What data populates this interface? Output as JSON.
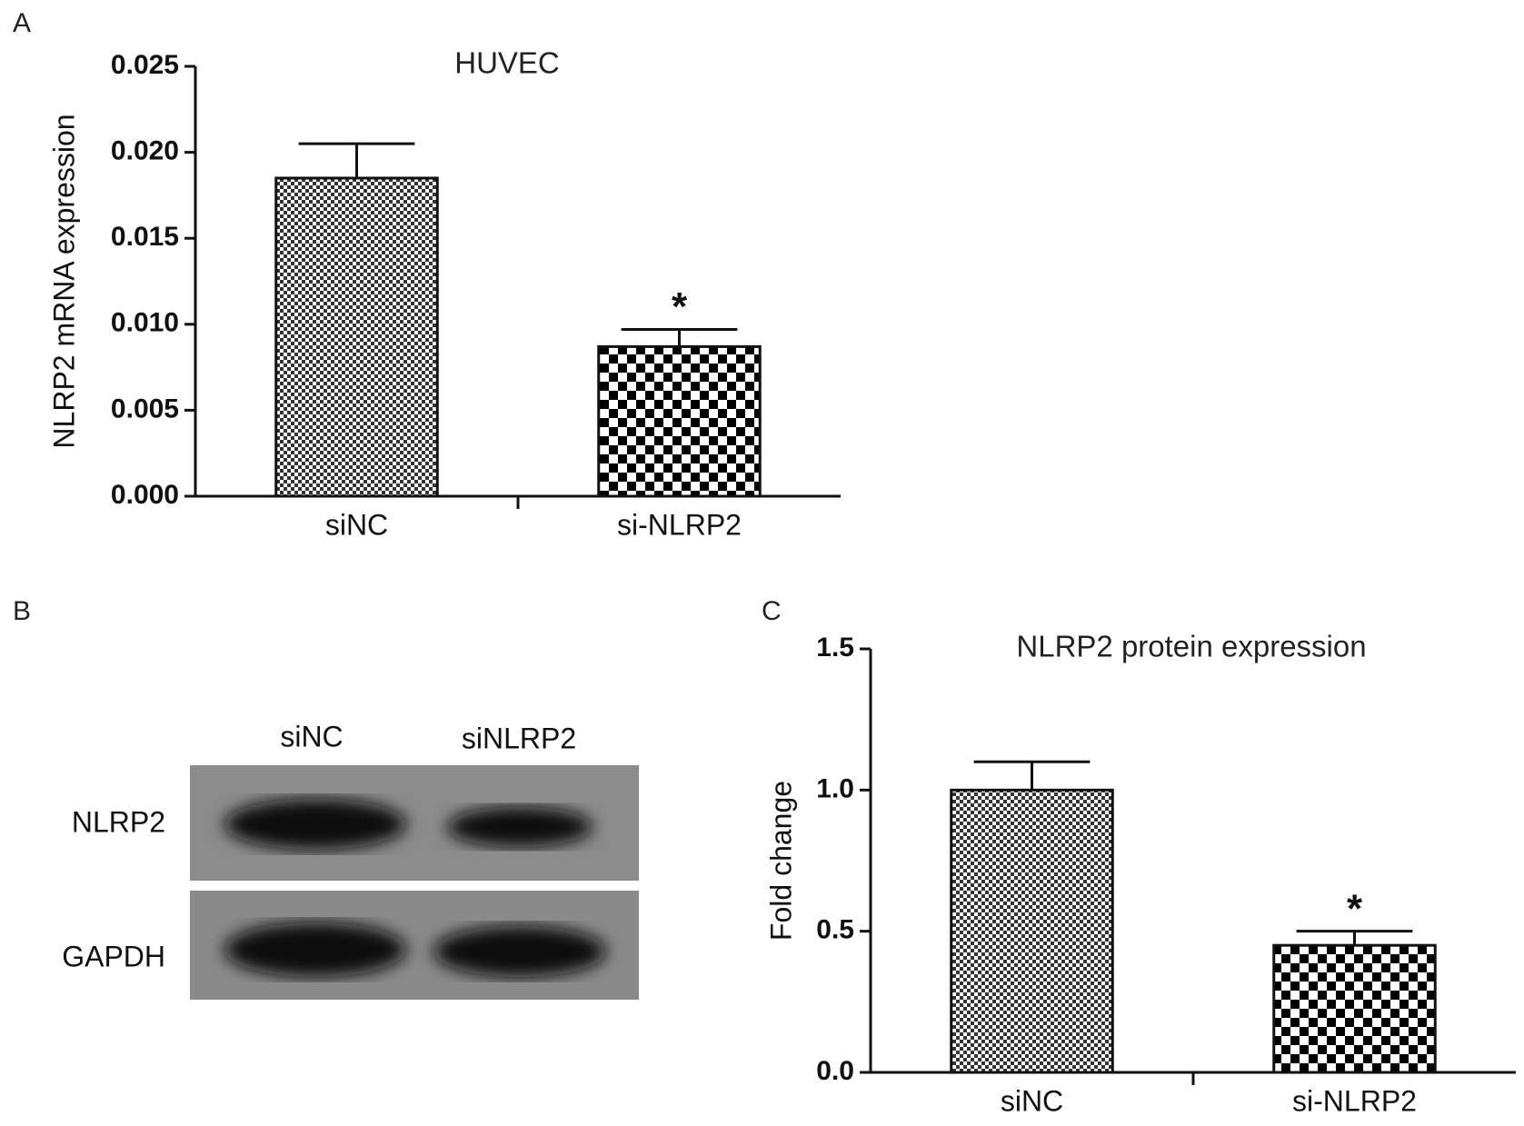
{
  "chart_data": [
    {
      "panel": "A",
      "type": "bar",
      "title": "HUVEC",
      "y_label": "NLRP2 mRNA expression",
      "categories": [
        "siNC",
        "si-NLRP2"
      ],
      "values": [
        0.0185,
        0.0087
      ],
      "errors": [
        0.002,
        0.001
      ],
      "significance": [
        null,
        "*"
      ],
      "ylim": [
        0,
        0.025
      ],
      "yticks": [
        {
          "value": 0,
          "label": "0.000"
        },
        {
          "value": 0.005,
          "label": "0.005"
        },
        {
          "value": 0.01,
          "label": "0.010"
        },
        {
          "value": 0.015,
          "label": "0.015"
        },
        {
          "value": 0.02,
          "label": "0.020"
        },
        {
          "value": 0.025,
          "label": "0.025"
        }
      ]
    },
    {
      "panel": "C",
      "type": "bar",
      "title": "NLRP2 protein expression",
      "y_label": "Fold change",
      "categories": [
        "siNC",
        "si-NLRP2"
      ],
      "values": [
        1.0,
        0.45
      ],
      "errors": [
        0.1,
        0.05
      ],
      "significance": [
        null,
        "*"
      ],
      "ylim": [
        0,
        1.5
      ],
      "yticks": [
        {
          "value": 0,
          "label": "0.0"
        },
        0.5,
        {
          "value": 1,
          "label": "1.0"
        },
        1.5
      ]
    }
  ],
  "blot": {
    "panel": "B",
    "lanes": [
      "siNC",
      "siNLRP2"
    ],
    "rows": [
      "NLRP2",
      "GAPDH"
    ]
  }
}
